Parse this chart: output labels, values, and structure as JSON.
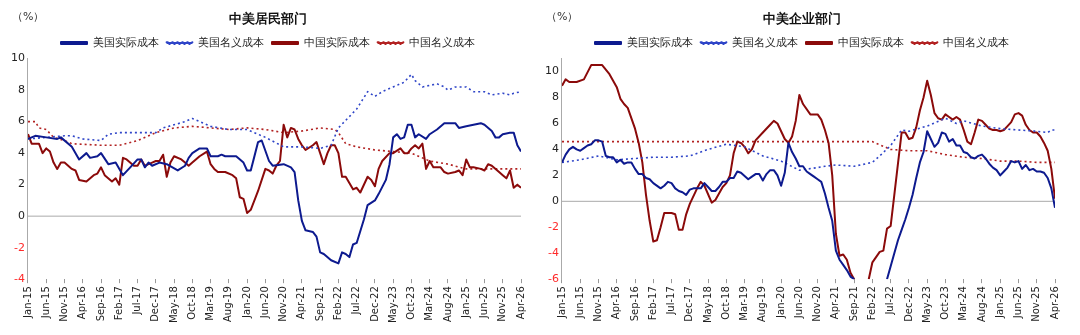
{
  "chart_data": [
    {
      "type": "line",
      "title": "中美居民部门",
      "ylabel": "（%）",
      "legend": "top",
      "grid": false,
      "ref_lines": [
        {
          "axis": "y",
          "value": 0,
          "color": "#aaaaaa"
        }
      ],
      "ylim": [
        -4,
        10
      ],
      "yticks": [
        -4,
        -2,
        0,
        2,
        4,
        6,
        8,
        10
      ],
      "xlim": [
        "2015-01",
        "2026-04"
      ],
      "xticks": [
        {
          "value": "2015-01",
          "label": "Jan-15"
        },
        {
          "value": "2015-06",
          "label": "Jun-15"
        },
        {
          "value": "2015-11",
          "label": "Nov-15"
        },
        {
          "value": "2016-04",
          "label": "Apr-16"
        },
        {
          "value": "2016-09",
          "label": "Sep-16"
        },
        {
          "value": "2017-02",
          "label": "Feb-17"
        },
        {
          "value": "2017-07",
          "label": "Jul-17"
        },
        {
          "value": "2017-12",
          "label": "Dec-17"
        },
        {
          "value": "2018-05",
          "label": "May-18"
        },
        {
          "value": "2018-10",
          "label": "Oct-18"
        },
        {
          "value": "2019-03",
          "label": "Mar-19"
        },
        {
          "value": "2019-08",
          "label": "Aug-19"
        },
        {
          "value": "2020-01",
          "label": "Jan-20"
        },
        {
          "value": "2020-06",
          "label": "Jun-20"
        },
        {
          "value": "2020-11",
          "label": "Nov-20"
        },
        {
          "value": "2021-04",
          "label": "Apr-21"
        },
        {
          "value": "2021-09",
          "label": "Sep-21"
        },
        {
          "value": "2022-02",
          "label": "Feb-22"
        },
        {
          "value": "2022-07",
          "label": "Jul-22"
        },
        {
          "value": "2022-12",
          "label": "Dec-22"
        },
        {
          "value": "2023-05",
          "label": "May-23"
        },
        {
          "value": "2023-10",
          "label": "Oct-23"
        },
        {
          "value": "2024-03",
          "label": "Mar-24"
        },
        {
          "value": "2024-08",
          "label": "Aug-24"
        },
        {
          "value": "2025-01",
          "label": "Jan-25"
        },
        {
          "value": "2025-06",
          "label": "Jun-25"
        },
        {
          "value": "2025-11",
          "label": "Nov-25"
        },
        {
          "value": "2026-04",
          "label": "Apr-26"
        }
      ],
      "series": [
        {
          "name": "美国实际成本",
          "color": "#0d1a8f",
          "line_style": "solid",
          "x": [
            "2015-01",
            "2015-03",
            "2015-06",
            "2015-09",
            "2015-10",
            "2016-01",
            "2016-03",
            "2016-05",
            "2016-06",
            "2016-08",
            "2016-09",
            "2016-11",
            "2017-01",
            "2017-03",
            "2017-05",
            "2017-07",
            "2017-08",
            "2017-09",
            "2017-10",
            "2017-11",
            "2018-01",
            "2018-03",
            "2018-06",
            "2018-08",
            "2018-09",
            "2018-10",
            "2018-12",
            "2019-02",
            "2019-03",
            "2019-05",
            "2019-06",
            "2019-07",
            "2019-10",
            "2019-12",
            "2020-01",
            "2020-02",
            "2020-04",
            "2020-05",
            "2020-07",
            "2020-08",
            "2020-11",
            "2021-01",
            "2021-02",
            "2021-03",
            "2021-04",
            "2021-05",
            "2021-07",
            "2021-08",
            "2021-09",
            "2021-10",
            "2021-12",
            "2022-02",
            "2022-03",
            "2022-04",
            "2022-05",
            "2022-06",
            "2022-07",
            "2022-09",
            "2022-10",
            "2022-12",
            "2023-01",
            "2023-03",
            "2023-04",
            "2023-05",
            "2023-06",
            "2023-07",
            "2023-08",
            "2023-09",
            "2023-10",
            "2023-11",
            "2023-12",
            "2024-02",
            "2024-03",
            "2024-05",
            "2024-07",
            "2024-08",
            "2024-10",
            "2024-11",
            "2025-01",
            "2025-03",
            "2025-05",
            "2025-06",
            "2025-08",
            "2025-09",
            "2025-10",
            "2025-11",
            "2026-01",
            "2026-02",
            "2026-03",
            "2026-04"
          ],
          "values": [
            4.9,
            5.1,
            5.0,
            4.9,
            5.0,
            4.4,
            3.6,
            4.0,
            3.7,
            3.8,
            4.0,
            3.3,
            3.4,
            2.6,
            3.1,
            3.6,
            3.6,
            3.1,
            3.4,
            3.2,
            3.4,
            3.3,
            2.9,
            3.2,
            3.7,
            4.0,
            4.3,
            4.3,
            3.8,
            3.8,
            3.9,
            3.8,
            3.8,
            3.4,
            2.9,
            2.9,
            4.7,
            4.8,
            3.5,
            3.2,
            3.3,
            3.1,
            2.8,
            1.0,
            -0.3,
            -0.9,
            -1.0,
            -1.3,
            -2.3,
            -2.4,
            -2.8,
            -3.0,
            -2.3,
            -2.4,
            -2.6,
            -1.8,
            -1.7,
            -0.2,
            0.7,
            1.0,
            1.4,
            2.3,
            3.3,
            5.0,
            5.2,
            4.9,
            5.0,
            5.8,
            5.8,
            5.0,
            5.2,
            4.9,
            5.2,
            5.5,
            5.9,
            5.9,
            5.9,
            5.6,
            5.7,
            5.8,
            5.9,
            5.8,
            5.4,
            5.0,
            5.0,
            5.2,
            5.3,
            5.3,
            4.5,
            4.1
          ]
        },
        {
          "name": "美国名义成本",
          "color": "#2f45c8",
          "line_style": "dotted",
          "x": [
            "2015-01",
            "2015-06",
            "2015-11",
            "2016-01",
            "2016-04",
            "2016-09",
            "2016-11",
            "2017-02",
            "2017-04",
            "2017-07",
            "2017-12",
            "2018-02",
            "2018-05",
            "2018-08",
            "2018-10",
            "2018-12",
            "2019-03",
            "2019-08",
            "2020-01",
            "2020-06",
            "2020-11",
            "2021-04",
            "2021-09",
            "2021-12",
            "2022-02",
            "2022-07",
            "2022-10",
            "2022-12",
            "2023-02",
            "2023-05",
            "2023-08",
            "2023-10",
            "2023-11",
            "2024-01",
            "2024-03",
            "2024-05",
            "2024-07",
            "2024-08",
            "2024-10",
            "2025-01",
            "2025-03",
            "2025-06",
            "2025-08",
            "2025-11",
            "2026-01",
            "2026-02",
            "2026-04"
          ],
          "values": [
            4.9,
            5.0,
            5.1,
            5.1,
            4.9,
            4.8,
            5.2,
            5.3,
            5.3,
            5.3,
            5.3,
            5.6,
            5.8,
            6.0,
            6.2,
            6.0,
            5.7,
            5.5,
            5.5,
            5.0,
            4.4,
            4.4,
            4.3,
            4.5,
            5.6,
            6.8,
            7.9,
            7.6,
            7.9,
            8.2,
            8.5,
            9.0,
            8.6,
            8.2,
            8.3,
            8.4,
            8.2,
            8.0,
            8.2,
            8.2,
            7.9,
            7.9,
            7.7,
            7.8,
            7.7,
            7.8,
            7.9
          ]
        },
        {
          "name": "中国实际成本",
          "color": "#8b0a0a",
          "line_style": "solid",
          "x": [
            "2015-01",
            "2015-02",
            "2015-04",
            "2015-05",
            "2015-06",
            "2015-07",
            "2015-08",
            "2015-09",
            "2015-10",
            "2015-11",
            "2016-01",
            "2016-02",
            "2016-03",
            "2016-05",
            "2016-07",
            "2016-08",
            "2016-09",
            "2016-10",
            "2016-12",
            "2017-01",
            "2017-02",
            "2017-03",
            "2017-04",
            "2017-06",
            "2017-07",
            "2017-08",
            "2017-09",
            "2017-10",
            "2017-11",
            "2017-12",
            "2018-01",
            "2018-02",
            "2018-03",
            "2018-04",
            "2018-05",
            "2018-07",
            "2018-08",
            "2018-09",
            "2018-10",
            "2018-12",
            "2019-02",
            "2019-03",
            "2019-04",
            "2019-05",
            "2019-07",
            "2019-09",
            "2019-10",
            "2019-11",
            "2019-12",
            "2020-01",
            "2020-02",
            "2020-04",
            "2020-06",
            "2020-07",
            "2020-08",
            "2020-09",
            "2020-10",
            "2020-11",
            "2020-12",
            "2021-01",
            "2021-02",
            "2021-03",
            "2021-04",
            "2021-05",
            "2021-07",
            "2021-08",
            "2021-09",
            "2021-10",
            "2021-11",
            "2021-12",
            "2022-01",
            "2022-02",
            "2022-03",
            "2022-04",
            "2022-06",
            "2022-07",
            "2022-08",
            "2022-10",
            "2022-11",
            "2022-12",
            "2023-01",
            "2023-02",
            "2023-04",
            "2023-05",
            "2023-07",
            "2023-08",
            "2023-09",
            "2023-10",
            "2023-11",
            "2023-12",
            "2024-01",
            "2024-02",
            "2024-03",
            "2024-04",
            "2024-06",
            "2024-07",
            "2024-08",
            "2024-10",
            "2024-11",
            "2024-12",
            "2025-01",
            "2025-02",
            "2025-03",
            "2025-05",
            "2025-06",
            "2025-07",
            "2025-08",
            "2025-10",
            "2025-11",
            "2025-12",
            "2026-01",
            "2026-02",
            "2026-03",
            "2026-04"
          ],
          "values": [
            5.2,
            4.6,
            4.6,
            4.0,
            4.3,
            4.1,
            3.4,
            3.0,
            3.4,
            3.4,
            3.0,
            2.9,
            2.3,
            2.2,
            2.6,
            2.7,
            3.1,
            2.6,
            2.2,
            2.4,
            2.0,
            3.7,
            3.6,
            3.2,
            3.2,
            3.6,
            3.2,
            3.3,
            3.4,
            3.5,
            3.5,
            3.9,
            2.5,
            3.4,
            3.8,
            3.6,
            3.4,
            3.2,
            3.4,
            3.8,
            4.1,
            3.3,
            3.0,
            2.8,
            2.8,
            2.6,
            2.4,
            1.2,
            1.1,
            0.2,
            0.4,
            1.6,
            3.0,
            2.9,
            2.7,
            3.2,
            3.5,
            5.8,
            5.0,
            5.6,
            5.5,
            4.9,
            4.5,
            4.2,
            4.5,
            4.7,
            4.0,
            3.3,
            4.0,
            4.5,
            4.5,
            4.0,
            2.5,
            2.5,
            1.7,
            1.8,
            1.5,
            2.5,
            2.3,
            1.9,
            3.0,
            3.5,
            4.0,
            4.0,
            4.3,
            4.0,
            4.0,
            4.3,
            4.5,
            4.3,
            4.6,
            3.0,
            3.5,
            3.1,
            3.1,
            2.8,
            2.7,
            2.8,
            2.9,
            2.6,
            3.6,
            3.1,
            3.1,
            3.0,
            2.9,
            3.3,
            3.2,
            2.8,
            2.6,
            2.4,
            2.9,
            1.8,
            2.0,
            1.8
          ]
        },
        {
          "name": "中国名义成本",
          "color": "#b22222",
          "line_style": "dotted",
          "x": [
            "2015-01",
            "2015-03",
            "2015-04",
            "2015-06",
            "2015-08",
            "2015-11",
            "2016-01",
            "2016-09",
            "2017-02",
            "2017-07",
            "2017-12",
            "2018-05",
            "2018-10",
            "2019-03",
            "2019-08",
            "2020-01",
            "2020-06",
            "2020-11",
            "2021-04",
            "2021-09",
            "2022-01",
            "2022-02",
            "2022-04",
            "2022-07",
            "2022-12",
            "2023-05",
            "2023-10",
            "2024-03",
            "2024-08",
            "2025-01",
            "2025-06",
            "2025-11",
            "2026-04"
          ],
          "values": [
            6.0,
            6.0,
            5.6,
            5.5,
            5.0,
            4.8,
            4.6,
            4.5,
            4.5,
            4.8,
            5.3,
            5.6,
            5.7,
            5.6,
            5.5,
            5.6,
            5.5,
            5.3,
            5.4,
            5.6,
            5.5,
            5.3,
            4.6,
            4.4,
            4.2,
            4.1,
            4.0,
            3.5,
            3.3,
            3.0,
            3.0,
            3.0,
            3.0
          ]
        }
      ]
    },
    {
      "type": "line",
      "title": "中美企业部门",
      "ylabel": "（%）",
      "legend": "top",
      "grid": false,
      "ref_lines": [
        {
          "axis": "y",
          "value": 0,
          "color": "#aaaaaa"
        }
      ],
      "ylim": [
        -6,
        11
      ],
      "yticks": [
        -6,
        -4,
        -2,
        0,
        2,
        4,
        6,
        8,
        10
      ],
      "xlim": [
        "2015-01",
        "2026-04"
      ],
      "xticks": [
        {
          "value": "2015-01",
          "label": "Jan-15"
        },
        {
          "value": "2015-06",
          "label": "Jun-15"
        },
        {
          "value": "2015-11",
          "label": "Nov-15"
        },
        {
          "value": "2016-04",
          "label": "Apr-16"
        },
        {
          "value": "2016-09",
          "label": "Sep-16"
        },
        {
          "value": "2017-02",
          "label": "Feb-17"
        },
        {
          "value": "2017-07",
          "label": "Jul-17"
        },
        {
          "value": "2017-12",
          "label": "Dec-17"
        },
        {
          "value": "2018-05",
          "label": "May-18"
        },
        {
          "value": "2018-10",
          "label": "Oct-18"
        },
        {
          "value": "2019-03",
          "label": "Mar-19"
        },
        {
          "value": "2019-08",
          "label": "Aug-19"
        },
        {
          "value": "2020-01",
          "label": "Jan-20"
        },
        {
          "value": "2020-06",
          "label": "Jun-20"
        },
        {
          "value": "2020-11",
          "label": "Nov-20"
        },
        {
          "value": "2021-04",
          "label": "Apr-21"
        },
        {
          "value": "2021-09",
          "label": "Sep-21"
        },
        {
          "value": "2022-02",
          "label": "Feb-22"
        },
        {
          "value": "2022-07",
          "label": "Jul-22"
        },
        {
          "value": "2022-12",
          "label": "Dec-22"
        },
        {
          "value": "2023-05",
          "label": "May-23"
        },
        {
          "value": "2023-10",
          "label": "Oct-23"
        },
        {
          "value": "2024-03",
          "label": "Mar-24"
        },
        {
          "value": "2024-08",
          "label": "Aug-24"
        },
        {
          "value": "2025-01",
          "label": "Jan-25"
        },
        {
          "value": "2025-06",
          "label": "Jun-25"
        },
        {
          "value": "2025-11",
          "label": "Nov-25"
        },
        {
          "value": "2026-04",
          "label": "Apr-26"
        }
      ],
      "series": [
        {
          "name": "美国实际成本",
          "color": "#0d1a8f",
          "line_style": "solid",
          "x": [
            "2015-01",
            "2015-02",
            "2015-03",
            "2015-04",
            "2015-05",
            "2015-06",
            "2015-07",
            "2015-08",
            "2015-09",
            "2015-10",
            "2015-11",
            "2015-12",
            "2016-01",
            "2016-02",
            "2016-03",
            "2016-04",
            "2016-05",
            "2016-06",
            "2016-07",
            "2016-08",
            "2016-09",
            "2016-10",
            "2016-11",
            "2016-12",
            "2017-01",
            "2017-02",
            "2017-04",
            "2017-05",
            "2017-06",
            "2017-07",
            "2017-08",
            "2017-09",
            "2017-10",
            "2017-11",
            "2017-12",
            "2018-01",
            "2018-03",
            "2018-04",
            "2018-05",
            "2018-06",
            "2018-07",
            "2018-08",
            "2018-09",
            "2018-10",
            "2018-11",
            "2018-12",
            "2019-01",
            "2019-02",
            "2019-04",
            "2019-05",
            "2019-06",
            "2019-07",
            "2019-08",
            "2019-09",
            "2019-10",
            "2019-11",
            "2019-12",
            "2020-01",
            "2020-02",
            "2020-03",
            "2020-04",
            "2020-05",
            "2020-06",
            "2020-07",
            "2020-08",
            "2020-09",
            "2020-10",
            "2020-11",
            "2020-12",
            "2021-01",
            "2021-02",
            "2021-03",
            "2021-04",
            "2021-05",
            "2021-06",
            "2021-07",
            "2021-08",
            "2021-09",
            "2021-10",
            "2022-06",
            "2022-07",
            "2022-08",
            "2022-09",
            "2022-10",
            "2022-11",
            "2022-12",
            "2023-01",
            "2023-02",
            "2023-03",
            "2023-04",
            "2023-05",
            "2023-06",
            "2023-07",
            "2023-08",
            "2023-09",
            "2023-10",
            "2023-11",
            "2023-12",
            "2024-01",
            "2024-02",
            "2024-03",
            "2024-04",
            "2024-05",
            "2024-06",
            "2024-07",
            "2024-08",
            "2024-09",
            "2024-10",
            "2024-11",
            "2024-12",
            "2025-01",
            "2025-02",
            "2025-03",
            "2025-04",
            "2025-05",
            "2025-06",
            "2025-07",
            "2025-08",
            "2025-09",
            "2025-10",
            "2025-11",
            "2025-12",
            "2026-01",
            "2026-02",
            "2026-03",
            "2026-04"
          ],
          "values": [
            3.0,
            3.6,
            4.0,
            4.2,
            4.0,
            3.9,
            4.1,
            4.3,
            4.4,
            4.7,
            4.7,
            4.6,
            3.5,
            3.4,
            3.4,
            3.0,
            3.2,
            2.9,
            3.0,
            3.0,
            2.5,
            2.1,
            2.1,
            1.8,
            1.7,
            1.4,
            1.0,
            1.2,
            1.5,
            1.4,
            1.0,
            0.8,
            0.7,
            0.5,
            0.9,
            1.0,
            1.0,
            1.4,
            1.1,
            0.8,
            0.8,
            1.1,
            1.5,
            1.5,
            1.8,
            1.8,
            2.3,
            2.2,
            1.7,
            1.9,
            2.1,
            2.1,
            1.6,
            2.1,
            2.4,
            2.4,
            2.0,
            1.2,
            2.2,
            4.5,
            3.8,
            3.3,
            2.7,
            2.7,
            2.3,
            2.1,
            1.9,
            1.7,
            1.5,
            0.6,
            -0.5,
            -1.5,
            -3.8,
            -4.5,
            -4.9,
            -5.3,
            -5.8,
            -6.0,
            null,
            -6.0,
            -5.0,
            -4.0,
            -3.0,
            -2.2,
            -1.4,
            -0.5,
            0.5,
            1.8,
            3.0,
            3.8,
            5.4,
            4.8,
            4.2,
            4.5,
            5.3,
            5.2,
            4.6,
            4.8,
            4.3,
            4.3,
            3.8,
            3.7,
            3.4,
            3.3,
            3.5,
            3.6,
            3.3,
            2.9,
            2.6,
            2.4,
            2.0,
            2.3,
            2.6,
            3.1,
            3.0,
            3.1,
            2.5,
            2.8,
            2.4,
            2.5,
            2.3,
            2.3,
            2.2,
            1.8,
            1.0,
            -0.5
          ]
        },
        {
          "name": "美国名义成本",
          "color": "#2f45c8",
          "line_style": "dotted",
          "x": [
            "2015-01",
            "2015-06",
            "2015-11",
            "2016-04",
            "2016-09",
            "2017-02",
            "2017-07",
            "2017-12",
            "2018-05",
            "2018-10",
            "2019-03",
            "2019-08",
            "2020-01",
            "2020-06",
            "2020-11",
            "2021-01",
            "2021-04",
            "2021-09",
            "2022-02",
            "2022-04",
            "2022-07",
            "2022-10",
            "2022-12",
            "2023-05",
            "2023-10",
            "2024-01",
            "2024-03",
            "2024-08",
            "2025-01",
            "2025-06",
            "2025-11",
            "2026-02",
            "2026-03",
            "2026-04"
          ],
          "values": [
            3.0,
            3.2,
            3.5,
            3.2,
            3.3,
            3.4,
            3.4,
            3.5,
            4.0,
            4.4,
            4.2,
            3.5,
            3.1,
            2.4,
            2.6,
            2.7,
            2.8,
            2.7,
            3.0,
            3.5,
            4.3,
            5.5,
            5.4,
            5.8,
            6.4,
            6.0,
            6.2,
            5.8,
            5.6,
            5.5,
            5.4,
            5.3,
            5.5,
            5.5
          ]
        },
        {
          "name": "中国实际成本",
          "color": "#8b0a0a",
          "line_style": "solid",
          "x": [
            "2015-01",
            "2015-02",
            "2015-03",
            "2015-05",
            "2015-07",
            "2015-09",
            "2015-11",
            "2015-12",
            "2016-02",
            "2016-04",
            "2016-05",
            "2016-06",
            "2016-07",
            "2016-09",
            "2016-10",
            "2016-11",
            "2016-12",
            "2017-01",
            "2017-02",
            "2017-03",
            "2017-04",
            "2017-05",
            "2017-07",
            "2017-08",
            "2017-09",
            "2017-10",
            "2017-11",
            "2017-12",
            "2018-02",
            "2018-03",
            "2018-04",
            "2018-06",
            "2018-07",
            "2018-08",
            "2018-09",
            "2018-10",
            "2018-11",
            "2018-12",
            "2019-01",
            "2019-02",
            "2019-03",
            "2019-04",
            "2019-05",
            "2019-06",
            "2019-08",
            "2019-10",
            "2019-11",
            "2019-12",
            "2020-02",
            "2020-03",
            "2020-04",
            "2020-05",
            "2020-06",
            "2020-07",
            "2020-09",
            "2020-11",
            "2020-12",
            "2021-01",
            "2021-02",
            "2021-03",
            "2021-04",
            "2021-05",
            "2021-06",
            "2021-07",
            "2021-08",
            "2021-09",
            "2021-10",
            "2021-12",
            "2022-01",
            "2022-02",
            "2022-03",
            "2022-04",
            "2022-05",
            "2022-06",
            "2022-07",
            "2022-08",
            "2022-09",
            "2022-10",
            "2022-11",
            "2022-12",
            "2023-01",
            "2023-02",
            "2023-03",
            "2023-04",
            "2023-05",
            "2023-06",
            "2023-07",
            "2023-08",
            "2023-09",
            "2023-10",
            "2023-11",
            "2023-12",
            "2024-01",
            "2024-02",
            "2024-03",
            "2024-04",
            "2024-05",
            "2024-06",
            "2024-07",
            "2024-08",
            "2024-09",
            "2024-10",
            "2024-11",
            "2024-12",
            "2025-01",
            "2025-02",
            "2025-03",
            "2025-04",
            "2025-05",
            "2025-06",
            "2025-07",
            "2025-08",
            "2025-09",
            "2025-10",
            "2025-11",
            "2025-12",
            "2026-01",
            "2026-02",
            "2026-03",
            "2026-04"
          ],
          "values": [
            8.9,
            9.4,
            9.2,
            9.2,
            9.4,
            10.5,
            10.5,
            10.5,
            9.8,
            8.8,
            7.9,
            7.5,
            7.2,
            5.6,
            4.5,
            3.0,
            0.5,
            -1.5,
            -3.1,
            -3.0,
            -2.0,
            -0.9,
            -0.9,
            -1.0,
            -2.2,
            -2.2,
            -1.0,
            -0.2,
            1.0,
            1.5,
            1.2,
            -0.1,
            0.1,
            0.6,
            1.1,
            1.4,
            2.0,
            3.7,
            4.6,
            4.5,
            4.2,
            3.7,
            4.0,
            4.7,
            5.3,
            5.9,
            6.2,
            6.0,
            4.8,
            4.5,
            5.0,
            6.2,
            8.2,
            7.5,
            6.7,
            6.7,
            6.3,
            5.5,
            4.5,
            2.0,
            -2.5,
            -4.2,
            -4.1,
            -4.5,
            -5.5,
            -6.0,
            null,
            null,
            -6.0,
            -4.7,
            -4.3,
            -3.9,
            -3.8,
            -2.1,
            -1.9,
            0.5,
            2.9,
            5.3,
            5.3,
            4.8,
            4.9,
            5.7,
            7.0,
            8.0,
            9.3,
            8.2,
            6.8,
            6.4,
            6.3,
            6.7,
            6.5,
            6.3,
            6.5,
            6.3,
            5.5,
            4.6,
            4.4,
            5.3,
            6.3,
            6.2,
            5.9,
            5.6,
            5.5,
            5.5,
            5.4,
            5.5,
            5.8,
            6.1,
            6.7,
            6.8,
            6.6,
            5.9,
            5.5,
            5.3,
            5.3,
            5.0,
            4.5,
            3.9,
            2.5,
            0.2
          ]
        },
        {
          "name": "中国名义成本",
          "color": "#b22222",
          "line_style": "dotted",
          "x": [
            "2015-01",
            "2022-02",
            "2022-07",
            "2022-12",
            "2023-05",
            "2023-10",
            "2024-03",
            "2024-08",
            "2025-01",
            "2025-06",
            "2025-11",
            "2026-04"
          ],
          "values": [
            4.6,
            4.6,
            4.0,
            3.9,
            3.9,
            3.6,
            3.4,
            3.3,
            3.1,
            3.1,
            3.0,
            3.0
          ]
        }
      ]
    }
  ]
}
